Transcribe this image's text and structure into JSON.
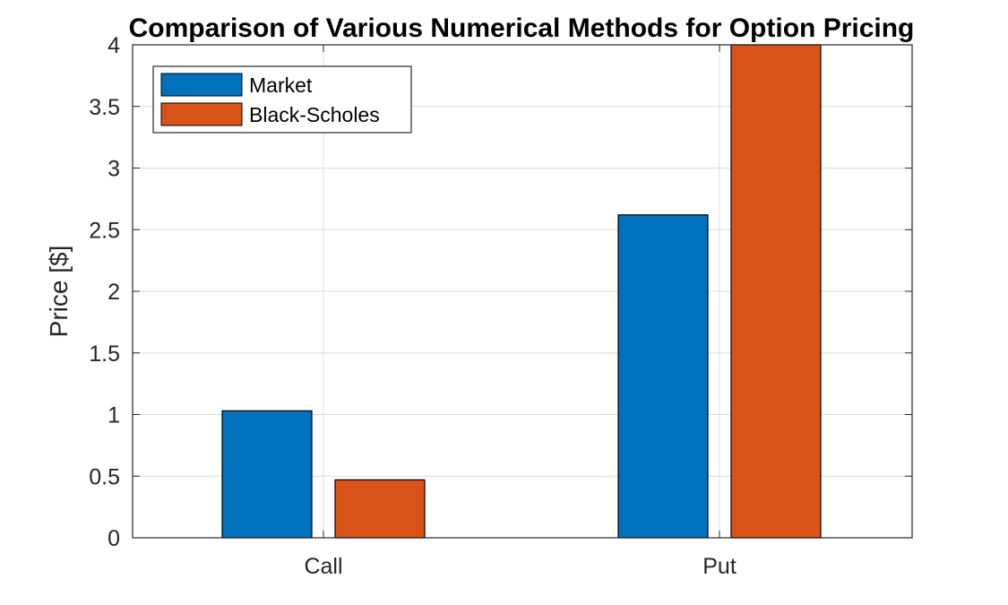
{
  "chart_data": {
    "type": "bar",
    "title": "Comparison of Various Numerical Methods for Option Pricing",
    "xlabel": "",
    "ylabel": "Price [$]",
    "categories": [
      "Call",
      "Put"
    ],
    "series": [
      {
        "name": "Market",
        "values": [
          1.03,
          2.62
        ],
        "color": "#0072BD"
      },
      {
        "name": "Black-Scholes",
        "values": [
          0.47,
          4.0
        ],
        "color": "#D95319"
      }
    ],
    "ylim": [
      0,
      4
    ],
    "yticks": [
      0,
      0.5,
      1,
      1.5,
      2,
      2.5,
      3,
      3.5,
      4
    ],
    "ytick_labels": [
      "0",
      "0.5",
      "1",
      "1.5",
      "2",
      "2.5",
      "3",
      "3.5",
      "4"
    ],
    "grid": true,
    "legend_position": "top-left"
  }
}
